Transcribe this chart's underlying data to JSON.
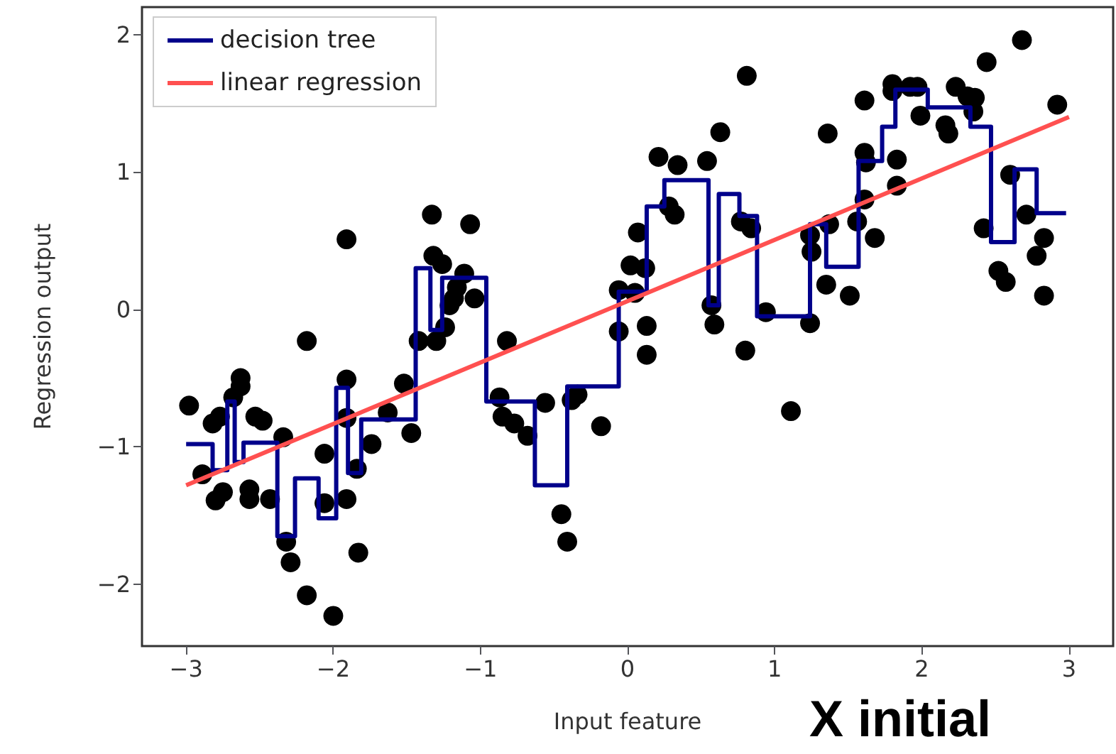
{
  "chart_data": {
    "type": "scatter",
    "xlabel": "Input feature",
    "ylabel": "Regression output",
    "annotations": [
      "X initial"
    ],
    "xlim": [
      -3.3,
      3.3
    ],
    "ylim": [
      -2.45,
      2.2
    ],
    "xticks": [
      {
        "value": -3,
        "label": "−3"
      },
      {
        "value": -2,
        "label": "−2"
      },
      {
        "value": -1,
        "label": "−1"
      },
      0,
      1,
      2,
      3
    ],
    "yticks": [
      {
        "value": -2,
        "label": "−2"
      },
      {
        "value": -1,
        "label": "−1"
      },
      0,
      1,
      2
    ],
    "grid": false,
    "legend": "top left",
    "series": [
      {
        "type": "step",
        "name": "decision tree",
        "color": "#00008b",
        "marker": "none",
        "x": [
          -3.0,
          -2.82,
          -2.72,
          -2.67,
          -2.61,
          -2.38,
          -2.26,
          -2.1,
          -1.98,
          -1.9,
          -1.81,
          -1.44,
          -1.34,
          -1.26,
          -0.96,
          -0.63,
          -0.41,
          -0.06,
          0.13,
          0.25,
          0.55,
          0.62,
          0.76,
          0.88,
          1.24,
          1.35,
          1.57,
          1.73,
          1.82,
          2.04,
          2.33,
          2.47,
          2.63,
          2.78,
          2.98
        ],
        "values": [
          -0.98,
          -1.17,
          -0.67,
          -1.11,
          -0.97,
          -1.65,
          -1.23,
          -1.52,
          -0.57,
          -1.19,
          -0.8,
          0.3,
          -0.15,
          0.23,
          -0.67,
          -1.28,
          -0.56,
          0.13,
          0.75,
          0.94,
          0.03,
          0.84,
          0.68,
          -0.05,
          0.62,
          0.31,
          1.08,
          1.33,
          1.6,
          1.47,
          1.33,
          0.49,
          1.02,
          0.7,
          0.7
        ]
      },
      {
        "type": "line",
        "name": "linear regression",
        "color": "#ff5050",
        "marker": "none",
        "x": [
          -3,
          3
        ],
        "values": [
          -1.28,
          1.4
        ]
      },
      {
        "color": "#000000",
        "marker": "circle",
        "x": [
          -2.98,
          -2.89,
          -2.82,
          -2.77,
          -2.8,
          -2.75,
          -2.68,
          -2.63,
          -2.63,
          -2.57,
          -2.57,
          -2.53,
          -2.48,
          -2.43,
          -2.34,
          -2.32,
          -2.29,
          -2.18,
          -2.18,
          -2.06,
          -2.06,
          -2.0,
          -1.91,
          -1.91,
          -1.91,
          -1.91,
          -1.84,
          -1.83,
          -1.74,
          -1.63,
          -1.52,
          -1.47,
          -1.42,
          -1.33,
          -1.32,
          -1.3,
          -1.26,
          -1.24,
          -1.21,
          -1.18,
          -1.16,
          -1.11,
          -1.07,
          -1.04,
          -0.82,
          -0.87,
          -0.85,
          -0.77,
          -0.68,
          -0.56,
          -0.45,
          -0.41,
          -0.38,
          -0.34,
          -0.18,
          -0.06,
          -0.06,
          0.05,
          0.02,
          0.07,
          0.12,
          0.13,
          0.13,
          0.21,
          0.34,
          0.28,
          0.32,
          0.54,
          0.63,
          0.81,
          0.57,
          0.59,
          0.77,
          0.8,
          0.84,
          0.94,
          1.11,
          1.24,
          1.36,
          1.37,
          1.24,
          1.25,
          1.35,
          1.51,
          1.61,
          1.61,
          1.62,
          1.61,
          1.56,
          1.68,
          1.83,
          1.83,
          1.8,
          1.8,
          1.92,
          1.97,
          1.99,
          2.16,
          2.18,
          2.23,
          2.31,
          2.36,
          2.35,
          2.44,
          2.68,
          2.92,
          2.6,
          2.42,
          2.71,
          2.52,
          2.57,
          2.83,
          2.78,
          2.83
        ],
        "values": [
          -0.7,
          -1.2,
          -0.83,
          -0.78,
          -1.39,
          -1.33,
          -0.64,
          -0.5,
          -0.56,
          -1.38,
          -1.31,
          -0.78,
          -0.81,
          -1.38,
          -0.93,
          -1.69,
          -1.84,
          -0.23,
          -2.08,
          -1.41,
          -1.05,
          -2.23,
          0.51,
          -0.51,
          -0.79,
          -1.38,
          -1.16,
          -1.77,
          -0.98,
          -0.75,
          -0.54,
          -0.9,
          -0.23,
          0.69,
          0.39,
          -0.23,
          0.33,
          -0.13,
          0.03,
          0.08,
          0.16,
          0.26,
          0.62,
          0.08,
          -0.23,
          -0.64,
          -0.78,
          -0.83,
          -0.92,
          -0.68,
          -1.49,
          -1.69,
          -0.66,
          -0.62,
          -0.85,
          -0.16,
          0.14,
          0.12,
          0.32,
          0.56,
          0.3,
          -0.12,
          -0.33,
          1.11,
          1.05,
          0.75,
          0.69,
          1.08,
          1.29,
          1.7,
          0.03,
          -0.11,
          0.64,
          -0.3,
          0.59,
          -0.02,
          -0.74,
          -0.1,
          1.28,
          0.62,
          0.54,
          0.42,
          0.18,
          0.1,
          1.52,
          1.14,
          1.07,
          0.8,
          0.64,
          0.52,
          1.09,
          0.9,
          1.64,
          1.59,
          1.62,
          1.62,
          1.41,
          1.34,
          1.28,
          1.62,
          1.55,
          1.54,
          1.44,
          1.8,
          1.96,
          1.49,
          0.98,
          0.59,
          0.69,
          0.28,
          0.2,
          0.52,
          0.39,
          0.1
        ]
      }
    ]
  }
}
